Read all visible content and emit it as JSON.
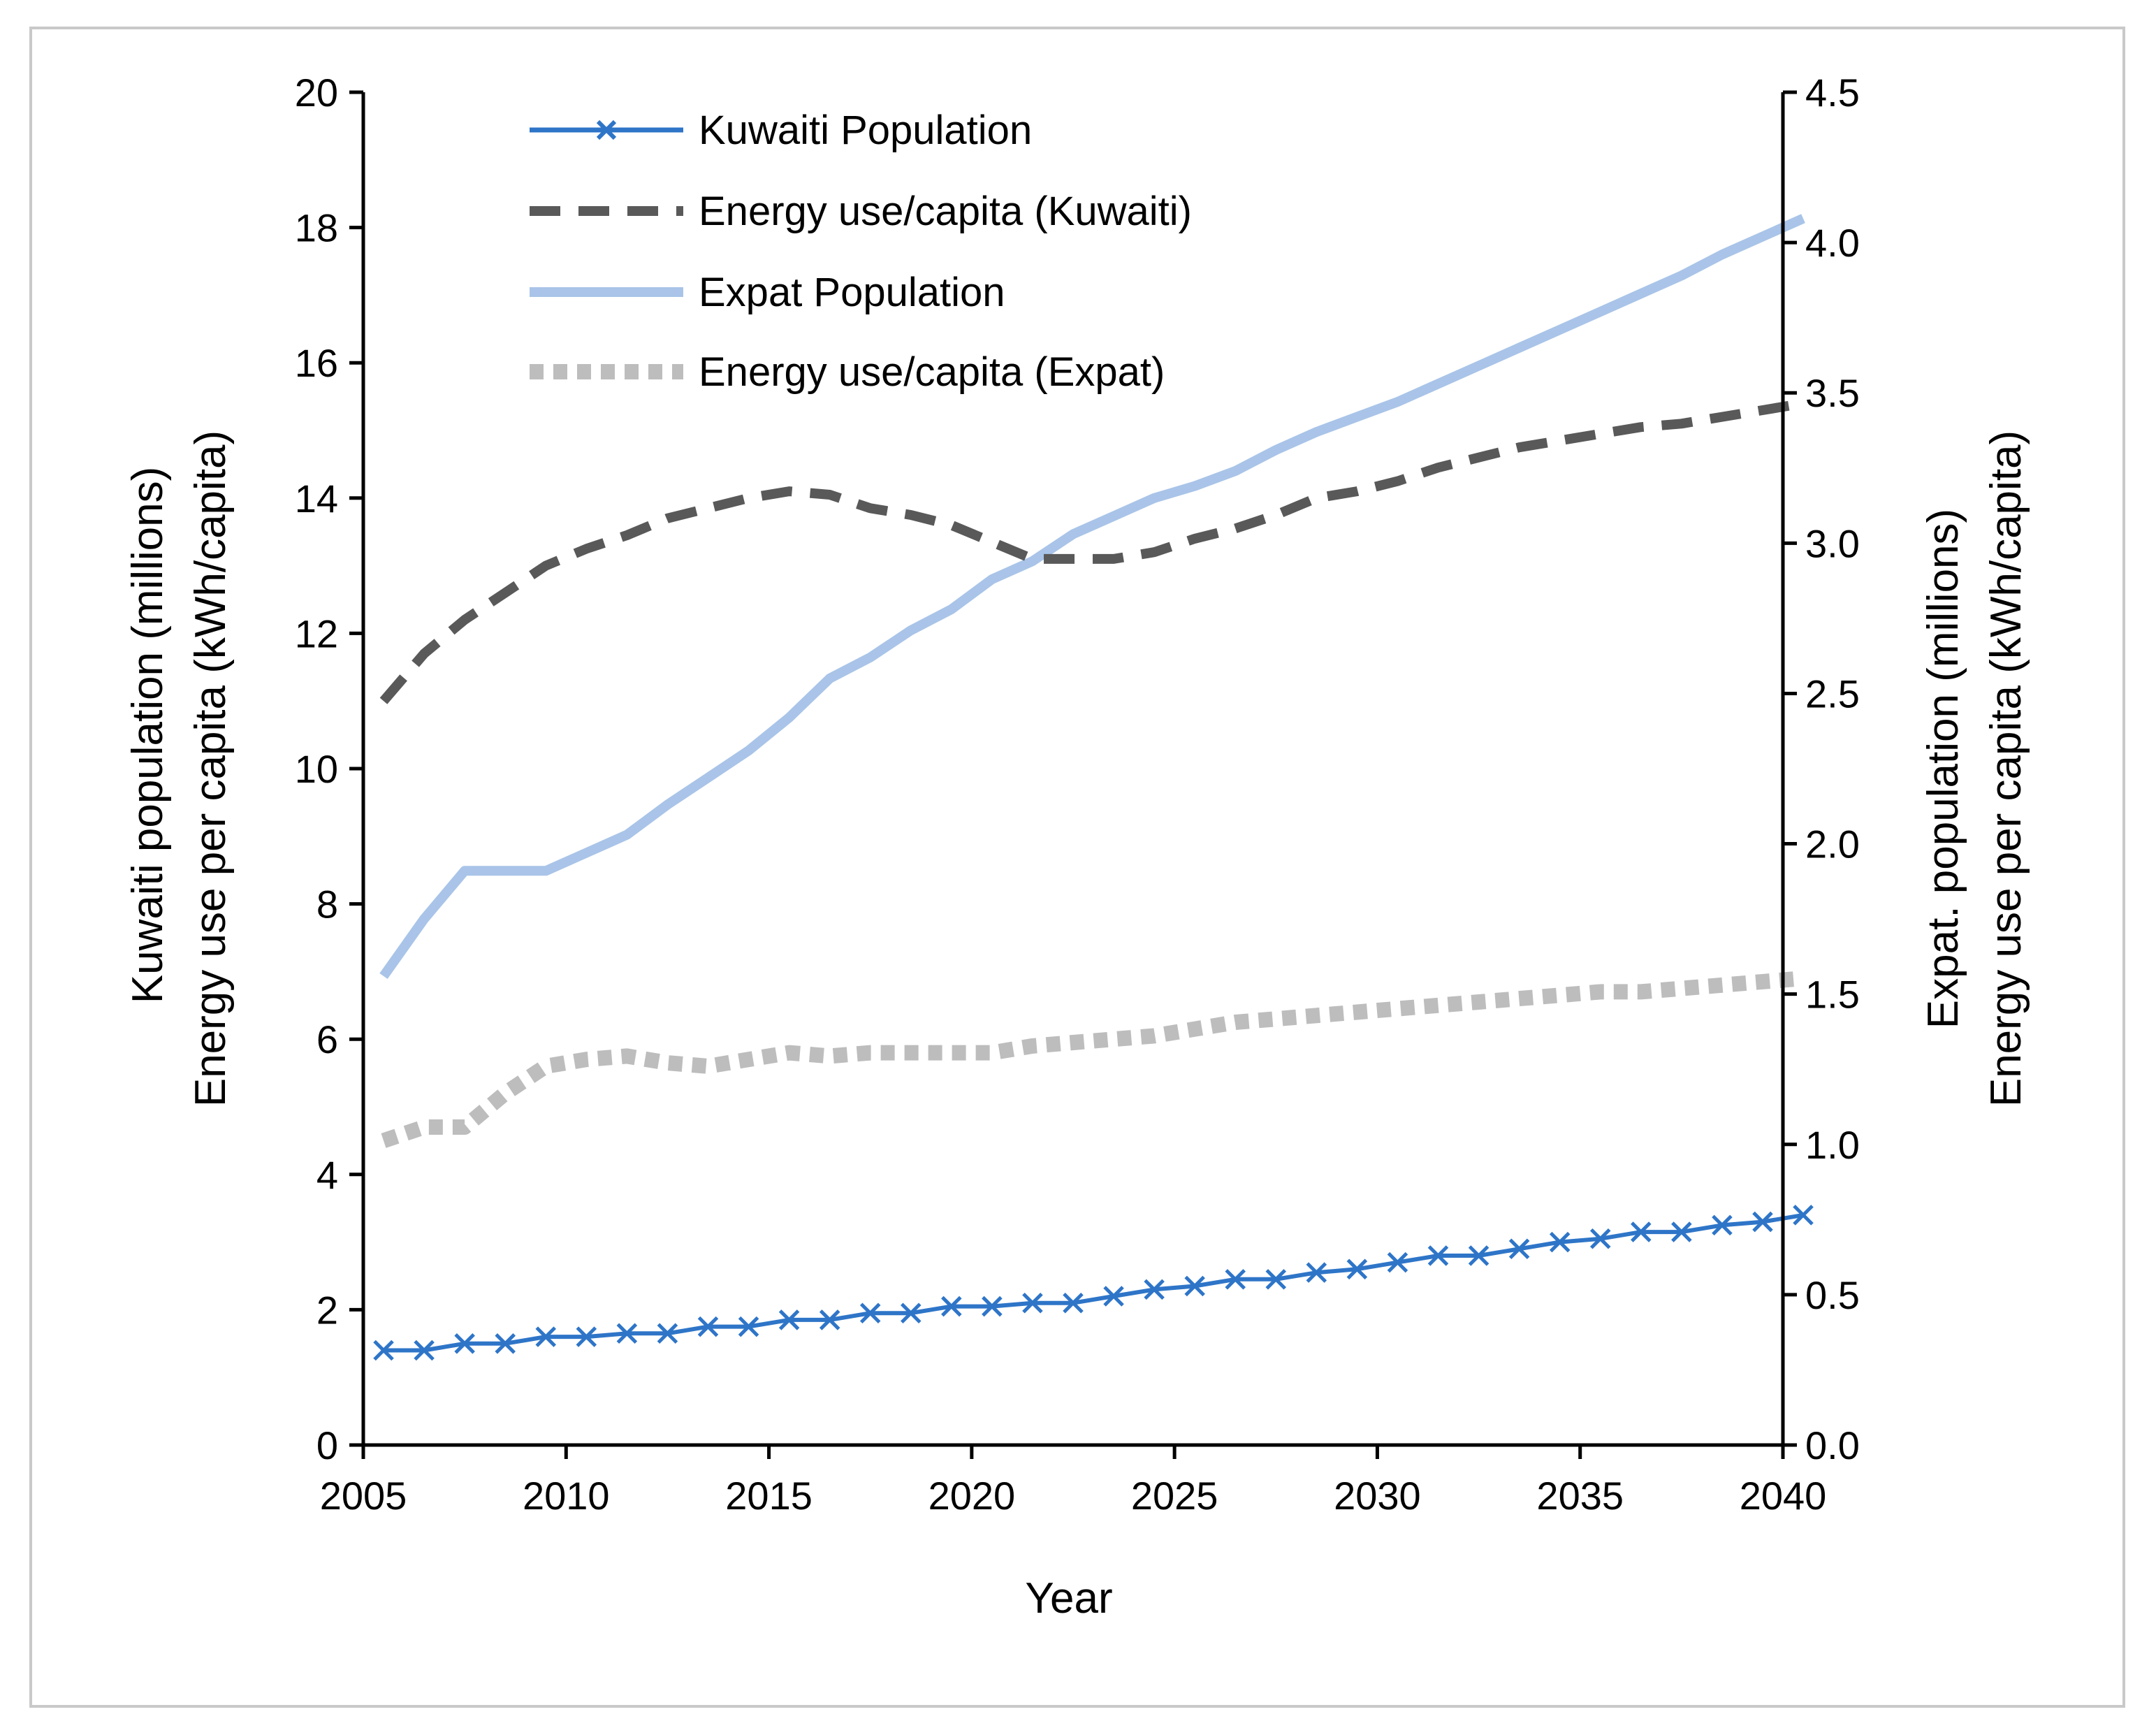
{
  "chart_data": {
    "type": "line",
    "title": "",
    "xlabel": "Year",
    "ylabel_left": [
      "Kuwaiti population (millions)",
      "Energy use per capita (kWh/capita)"
    ],
    "ylabel_right": [
      "Expat. population (millions)",
      "Energy use per capita (kWh/capita)"
    ],
    "xlim": [
      2005,
      2040
    ],
    "ylim_left": [
      0,
      20
    ],
    "ylim_right": [
      0,
      4.5
    ],
    "x_ticks": [
      "2005",
      "2010",
      "2015",
      "2020",
      "2025",
      "2030",
      "2035",
      "2040"
    ],
    "y_left_ticks": [
      "0",
      "2",
      "4",
      "6",
      "8",
      "10",
      "12",
      "14",
      "16",
      "18",
      "20"
    ],
    "y_right_ticks": [
      "0.0",
      "0.5",
      "1.0",
      "1.5",
      "2.0",
      "2.5",
      "3.0",
      "3.5",
      "4.0",
      "4.5"
    ],
    "grid": false,
    "legend_position": "top-left",
    "series": [
      {
        "name": "Kuwaiti Population",
        "axis": "left",
        "color": "#2E75C8",
        "style": "solid-x-markers",
        "x": [
          2005.5,
          2006.5,
          2007.5,
          2008.5,
          2009.5,
          2010.5,
          2011.5,
          2012.5,
          2013.5,
          2014.5,
          2015.5,
          2016.5,
          2017.5,
          2018.5,
          2019.5,
          2020.5,
          2021.5,
          2022.5,
          2023.5,
          2024.5,
          2025.5,
          2026.5,
          2027.5,
          2028.5,
          2029.5,
          2030.5,
          2031.5,
          2032.5,
          2033.5,
          2034.5,
          2035.5,
          2036.5,
          2037.5,
          2038.5,
          2039.5,
          2040.5
        ],
        "values": [
          1.4,
          1.4,
          1.5,
          1.5,
          1.6,
          1.6,
          1.65,
          1.65,
          1.75,
          1.75,
          1.85,
          1.85,
          1.95,
          1.95,
          2.05,
          2.05,
          2.1,
          2.1,
          2.2,
          2.3,
          2.35,
          2.45,
          2.45,
          2.55,
          2.6,
          2.7,
          2.8,
          2.8,
          2.9,
          3.0,
          3.05,
          3.15,
          3.15,
          3.25,
          3.3,
          3.4
        ]
      },
      {
        "name": "Energy use/capita (Kuwaiti)",
        "axis": "left",
        "color": "#595959",
        "style": "dashed",
        "x": [
          2005.5,
          2006.5,
          2007.5,
          2008.5,
          2009.5,
          2010.5,
          2011.5,
          2012.5,
          2013.5,
          2014.5,
          2015.5,
          2016.5,
          2017.5,
          2018.5,
          2019.5,
          2020.5,
          2021.5,
          2022.5,
          2023.5,
          2024.5,
          2025.5,
          2026.5,
          2027.5,
          2028.5,
          2029.5,
          2030.5,
          2031.5,
          2032.5,
          2033.5,
          2034.5,
          2035.5,
          2036.5,
          2037.5,
          2038.5,
          2039.5,
          2040.5
        ],
        "values": [
          11.0,
          11.7,
          12.2,
          12.6,
          13.0,
          13.25,
          13.45,
          13.7,
          13.85,
          14.0,
          14.1,
          14.05,
          13.85,
          13.75,
          13.6,
          13.35,
          13.1,
          13.1,
          13.1,
          13.2,
          13.4,
          13.55,
          13.75,
          14.0,
          14.1,
          14.25,
          14.45,
          14.6,
          14.75,
          14.85,
          14.95,
          15.05,
          15.1,
          15.2,
          15.3,
          15.4
        ]
      },
      {
        "name": "Expat Population",
        "axis": "right",
        "color": "#A9C4E8",
        "style": "solid",
        "x": [
          2005.5,
          2006.5,
          2007.5,
          2008.5,
          2009.5,
          2010.5,
          2011.5,
          2012.5,
          2013.5,
          2014.5,
          2015.5,
          2016.5,
          2017.5,
          2018.5,
          2019.5,
          2020.5,
          2021.5,
          2022.5,
          2023.5,
          2024.5,
          2025.5,
          2026.5,
          2027.5,
          2028.5,
          2029.5,
          2030.5,
          2031.5,
          2032.5,
          2033.5,
          2034.5,
          2035.5,
          2036.5,
          2037.5,
          2038.5,
          2039.5,
          2040.5
        ],
        "values": [
          1.56,
          1.75,
          1.91,
          1.91,
          1.91,
          1.97,
          2.03,
          2.13,
          2.22,
          2.31,
          2.42,
          2.55,
          2.62,
          2.71,
          2.78,
          2.88,
          2.94,
          3.03,
          3.09,
          3.15,
          3.19,
          3.24,
          3.31,
          3.37,
          3.42,
          3.47,
          3.53,
          3.59,
          3.65,
          3.71,
          3.77,
          3.83,
          3.89,
          3.96,
          4.02,
          4.08
        ]
      },
      {
        "name": "Energy use/capita (Expat)",
        "axis": "left",
        "color": "#BDBDBD",
        "style": "dotted",
        "x": [
          2005.5,
          2006.5,
          2007.5,
          2008.5,
          2009.5,
          2010.5,
          2011.5,
          2012.5,
          2013.5,
          2014.5,
          2015.5,
          2016.5,
          2017.5,
          2018.5,
          2019.5,
          2020.5,
          2021.5,
          2022.5,
          2023.5,
          2024.5,
          2025.5,
          2026.5,
          2027.5,
          2028.5,
          2029.5,
          2030.5,
          2031.5,
          2032.5,
          2033.5,
          2034.5,
          2035.5,
          2036.5,
          2037.5,
          2038.5,
          2039.5,
          2040.5
        ],
        "values": [
          4.5,
          4.7,
          4.7,
          5.2,
          5.6,
          5.7,
          5.75,
          5.65,
          5.6,
          5.7,
          5.8,
          5.75,
          5.8,
          5.8,
          5.8,
          5.8,
          5.9,
          5.95,
          6.0,
          6.05,
          6.15,
          6.25,
          6.3,
          6.35,
          6.4,
          6.45,
          6.5,
          6.55,
          6.6,
          6.65,
          6.7,
          6.7,
          6.75,
          6.8,
          6.85,
          6.9
        ]
      }
    ]
  }
}
